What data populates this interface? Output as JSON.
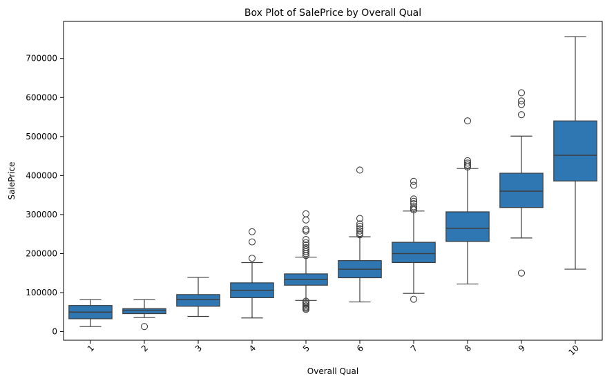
{
  "chart_data": {
    "type": "box",
    "title": "Box Plot of SalePrice by Overall Qual",
    "xlabel": "Overall Qual",
    "ylabel": "SalePrice",
    "categories": [
      "1",
      "2",
      "3",
      "4",
      "5",
      "6",
      "7",
      "8",
      "9",
      "10"
    ],
    "ylim": [
      -22000,
      795000
    ],
    "yticks": [
      0,
      100000,
      200000,
      300000,
      400000,
      500000,
      600000,
      700000
    ],
    "ytick_labels": [
      "0",
      "100000",
      "200000",
      "300000",
      "400000",
      "500000",
      "600000",
      "700000"
    ],
    "xtick_rotation": -45,
    "grid": false,
    "box_color": "#2f77b2",
    "line_color": "#3d3d3d",
    "boxes": [
      {
        "category": "1",
        "whisker_low": 13000,
        "q1": 33000,
        "median": 50000,
        "q3": 67000,
        "whisker_high": 82000,
        "outliers": []
      },
      {
        "category": "2",
        "whisker_low": 36000,
        "q1": 46000,
        "median": 55000,
        "q3": 59000,
        "whisker_high": 82000,
        "outliers": [
          13000
        ]
      },
      {
        "category": "3",
        "whisker_low": 39000,
        "q1": 65000,
        "median": 82000,
        "q3": 95000,
        "whisker_high": 139000,
        "outliers": []
      },
      {
        "category": "4",
        "whisker_low": 35000,
        "q1": 87000,
        "median": 106000,
        "q3": 125000,
        "whisker_high": 177000,
        "outliers": [
          188000,
          230000,
          256000
        ]
      },
      {
        "category": "5",
        "whisker_low": 80000,
        "q1": 119000,
        "median": 134000,
        "q3": 148000,
        "whisker_high": 191000,
        "outliers": [
          57000,
          60000,
          63000,
          66000,
          70000,
          74000,
          78000,
          195000,
          200000,
          205000,
          210000,
          215000,
          222000,
          228000,
          236000,
          258000,
          262000,
          286000,
          302000
        ]
      },
      {
        "category": "6",
        "whisker_low": 76000,
        "q1": 138000,
        "median": 160000,
        "q3": 182000,
        "whisker_high": 243000,
        "outliers": [
          248000,
          252000,
          258000,
          264000,
          270000,
          276000,
          290000,
          414000
        ]
      },
      {
        "category": "7",
        "whisker_low": 98000,
        "q1": 177000,
        "median": 200000,
        "q3": 229000,
        "whisker_high": 309000,
        "outliers": [
          83000,
          312000,
          316000,
          320000,
          328000,
          334000,
          340000,
          375000,
          385000
        ]
      },
      {
        "category": "8",
        "whisker_low": 122000,
        "q1": 231000,
        "median": 265000,
        "q3": 307000,
        "whisker_high": 418000,
        "outliers": [
          422000,
          427000,
          432000,
          438000,
          540000
        ]
      },
      {
        "category": "9",
        "whisker_low": 240000,
        "q1": 318000,
        "median": 360000,
        "q3": 406000,
        "whisker_high": 501000,
        "outliers": [
          150000,
          556000,
          582000,
          591000,
          612000
        ]
      },
      {
        "category": "10",
        "whisker_low": 160000,
        "q1": 386000,
        "median": 452000,
        "q3": 540000,
        "whisker_high": 756000,
        "outliers": []
      }
    ]
  }
}
